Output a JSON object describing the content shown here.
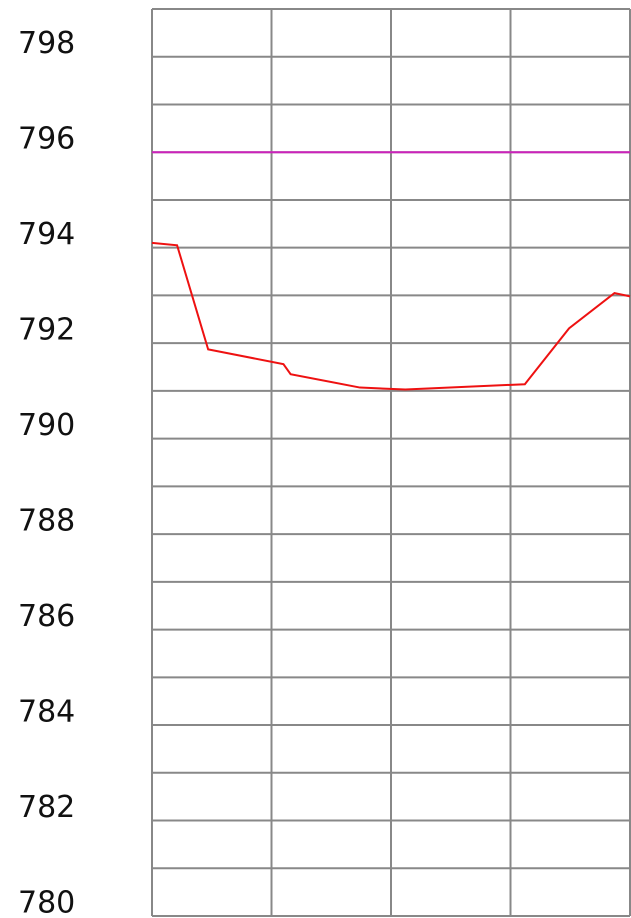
{
  "chart_data": {
    "type": "line",
    "x": [
      0,
      0.21,
      0.47,
      1.1,
      1.16,
      1.74,
      2.12,
      3.12,
      3.49,
      3.87,
      4.0
    ],
    "series": [
      {
        "color": "#ee1111",
        "values": [
          794.1,
          794.05,
          791.87,
          791.56,
          791.35,
          791.07,
          791.03,
          791.14,
          792.31,
          793.05,
          792.98
        ]
      }
    ],
    "reference_line": {
      "value": 796,
      "color": "#cc22bb"
    },
    "xlim": [
      0,
      4
    ],
    "xticks": [
      0,
      1,
      2,
      3,
      4
    ],
    "ylim": [
      780,
      799
    ],
    "yticks": [
      780,
      782,
      784,
      786,
      788,
      790,
      792,
      794,
      796,
      798
    ],
    "grid_yticks": [
      780,
      781,
      782,
      783,
      784,
      785,
      786,
      787,
      788,
      789,
      790,
      791,
      792,
      793,
      794,
      795,
      796,
      797,
      798,
      799
    ],
    "grid": true
  }
}
